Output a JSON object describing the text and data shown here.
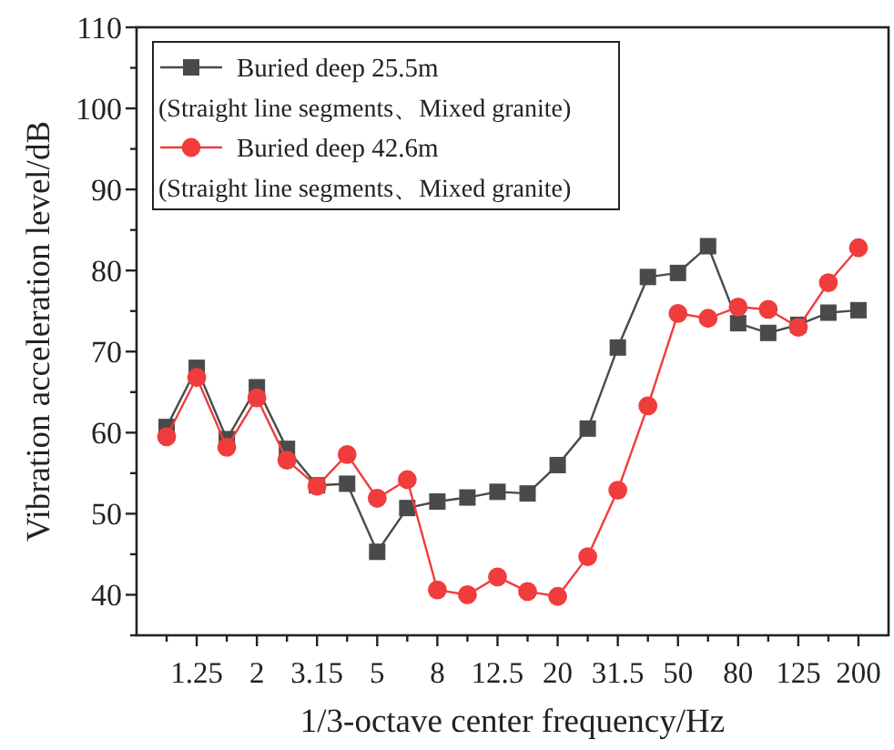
{
  "chart_data": {
    "type": "line",
    "xlabel": "1/3-octave center frequency/Hz",
    "ylabel": "Vibration acceleration level/dB",
    "categories": [
      null,
      "1.25",
      null,
      "2",
      null,
      "3.15",
      null,
      "5",
      null,
      "8",
      null,
      "12.5",
      null,
      "20",
      null,
      "31.5",
      null,
      "50",
      null,
      "80",
      null,
      "125",
      null,
      "200"
    ],
    "ylim": [
      35,
      110
    ],
    "yticks": [
      {
        "value": 35,
        "label": null
      },
      40,
      {
        "value": 45,
        "label": null
      },
      50,
      {
        "value": 55,
        "label": null
      },
      60,
      {
        "value": 65,
        "label": null
      },
      70,
      {
        "value": 75,
        "label": null
      },
      80,
      {
        "value": 85,
        "label": null
      },
      90,
      {
        "value": 95,
        "label": null
      },
      100,
      {
        "value": 105,
        "label": null
      },
      110
    ],
    "grid": false,
    "legend": "top left",
    "annotations": [
      "(Straight line segments、Mixed granite)",
      "(Straight line segments、Mixed granite)"
    ],
    "series": [
      {
        "name": "Buried deep 25.5m",
        "color": "#4a4a4a",
        "marker": "square",
        "values": [
          60.7,
          68.0,
          59.2,
          65.6,
          58.0,
          53.5,
          53.7,
          45.3,
          50.7,
          51.5,
          52.0,
          52.7,
          52.5,
          56.0,
          60.5,
          70.5,
          79.2,
          79.7,
          83.0,
          73.5,
          72.3,
          73.3,
          74.8,
          75.1
        ]
      },
      {
        "name": "Buried deep 42.6m",
        "color": "#f03c3c",
        "marker": "circle",
        "values": [
          59.5,
          66.8,
          58.2,
          64.3,
          56.6,
          53.4,
          57.3,
          51.9,
          54.2,
          40.6,
          40.0,
          42.2,
          40.4,
          39.8,
          44.7,
          52.9,
          63.3,
          74.7,
          74.1,
          75.5,
          75.2,
          73.0,
          78.5,
          82.8
        ]
      }
    ]
  }
}
